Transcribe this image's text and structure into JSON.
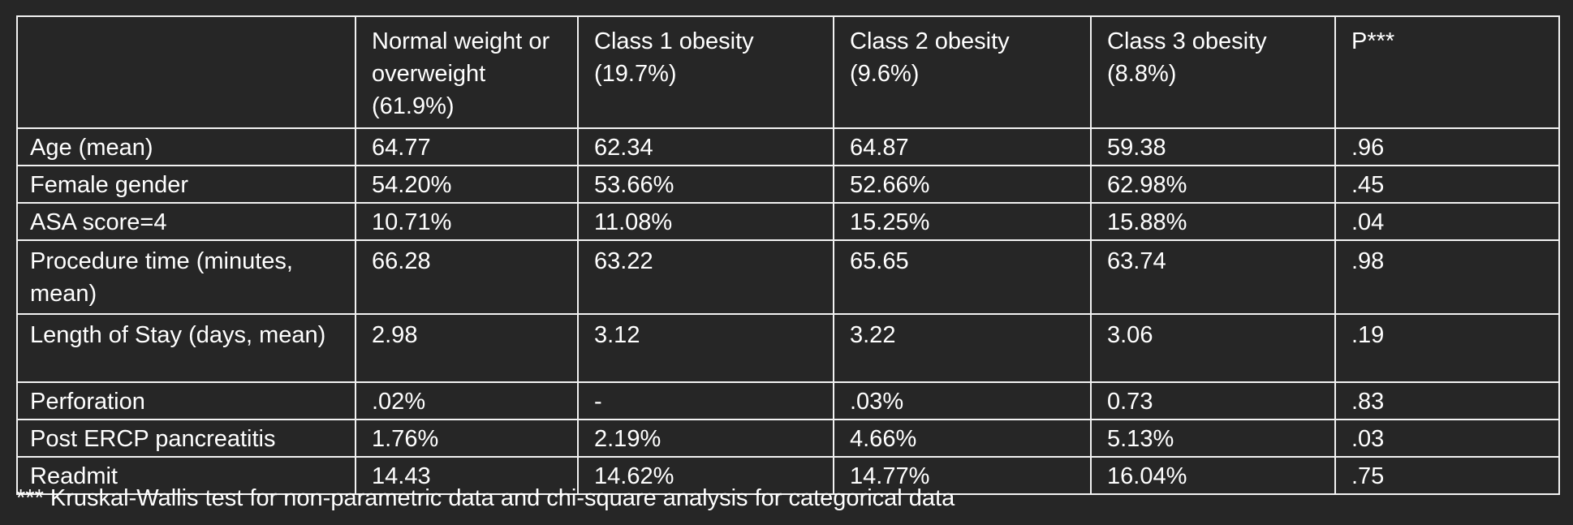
{
  "table": {
    "headers": [
      "",
      "Normal weight or overweight (61.9%)",
      "Class 1 obesity (19.7%)",
      "Class 2 obesity (9.6%)",
      "Class 3 obesity (8.8%)",
      "P***"
    ],
    "rows": [
      {
        "label": "Age (mean)",
        "values": [
          "64.77",
          "62.34",
          "64.87",
          "59.38",
          ".96"
        ]
      },
      {
        "label": "Female gender",
        "values": [
          "54.20%",
          "53.66%",
          "52.66%",
          "62.98%",
          ".45"
        ]
      },
      {
        "label": "ASA score=4",
        "values": [
          "10.71%",
          "11.08%",
          "15.25%",
          "15.88%",
          ".04"
        ]
      },
      {
        "label": "Procedure time (minutes, mean)",
        "values": [
          "66.28",
          "63.22",
          "65.65",
          "63.74",
          ".98"
        ]
      },
      {
        "label": "Length of Stay (days, mean)",
        "values": [
          "2.98",
          "3.12",
          "3.22",
          "3.06",
          ".19"
        ]
      },
      {
        "label": "Perforation",
        "values": [
          ".02%",
          "-",
          ".03%",
          "0.73",
          ".83"
        ]
      },
      {
        "label": "Post ERCP pancreatitis",
        "values": [
          "1.76%",
          "2.19%",
          "4.66%",
          "5.13%",
          ".03"
        ]
      },
      {
        "label": "Readmit",
        "values": [
          "14.43",
          "14.62%",
          "14.77%",
          "16.04%",
          ".75"
        ]
      }
    ]
  },
  "footnote": "*** Kruskal-Wallis test for non-parametric data and chi-square analysis for categorical data"
}
